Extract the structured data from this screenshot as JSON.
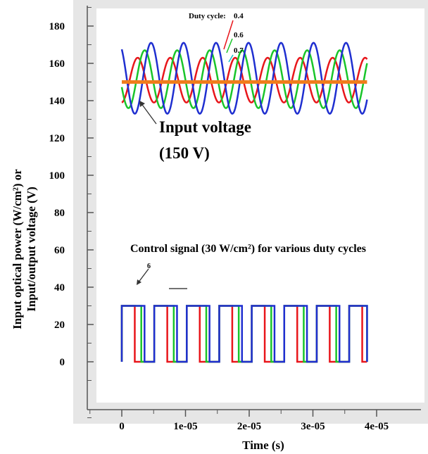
{
  "chart_data": {
    "type": "line",
    "title": "",
    "xlabel": "Time (s)",
    "ylabel_line1": "Input optical power (W/cm²) or",
    "ylabel_line2": "Input/output voltage (V)",
    "xlim": [
      -5e-06,
      4e-05
    ],
    "ylim": [
      -30,
      190
    ],
    "x_ticks": [
      0,
      1e-05,
      2e-05,
      3e-05,
      4e-05
    ],
    "x_tick_labels": [
      "0",
      "1e-05",
      "2e-05",
      "3e-05",
      "4e-05"
    ],
    "y_ticks": [
      0,
      20,
      40,
      60,
      80,
      100,
      120,
      140,
      160,
      180
    ],
    "y_tick_labels": [
      "0",
      "20",
      "40",
      "60",
      "80",
      "100",
      "120",
      "140",
      "160",
      "180"
    ],
    "colors": {
      "d04": "#e8161b",
      "d06": "#19c52a",
      "d07": "#1f2fd0",
      "input": "#f07d1c"
    },
    "input_voltage": {
      "name": "Input voltage",
      "value": 150,
      "x": [
        0,
        3.85e-05
      ]
    },
    "output_voltage": {
      "period": 5.1e-06,
      "t_end": 3.85e-05,
      "series": [
        {
          "name": "0.4",
          "duty": 0.4,
          "peak_time": 2.5e-06,
          "max": 163,
          "min": 139
        },
        {
          "name": "0.6",
          "duty": 0.6,
          "peak_time": 3.6e-06,
          "max": 167,
          "min": 136
        },
        {
          "name": "0.7",
          "duty": 0.7,
          "peak_time": 4.6e-06,
          "max": 171,
          "min": 133
        }
      ]
    },
    "control_signal": {
      "period": 5.1e-06,
      "amplitude": 30,
      "t_end": 3.85e-05,
      "series": [
        {
          "duty": 0.4
        },
        {
          "duty": 0.6
        },
        {
          "duty": 0.7
        }
      ]
    },
    "annotations": {
      "input_voltage_label": "Input voltage",
      "input_voltage_value": "(150 V)",
      "duty_cycle_label": "Duty cycle:",
      "d04": "0.4",
      "d06": "0.6",
      "d07": "0.7",
      "control_signal_label": "Control signal (30 W/cm²) for various duty cycles",
      "control_marker": "6"
    }
  }
}
